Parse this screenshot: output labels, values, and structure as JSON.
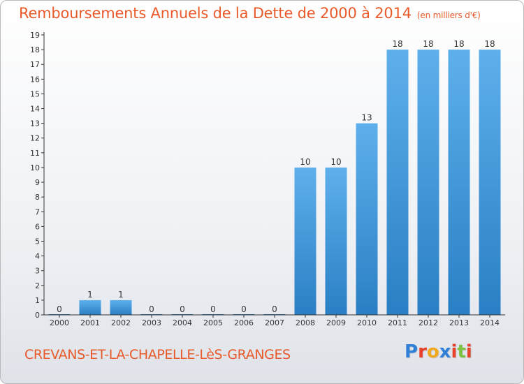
{
  "title": "Remboursements Annuels de la Dette de 2000 à 2014",
  "unit_label": "(en milliers d'€)",
  "commune": "CREVANS-ET-LA-CHAPELLE-LèS-GRANGES",
  "brand": {
    "letters": [
      "P",
      "r",
      "o",
      "x",
      "i",
      "t",
      "i"
    ],
    "colors": [
      "#2f7fd6",
      "#e8402a",
      "#f2a81c",
      "#2f7fd6",
      "#e8402a",
      "#7cc142",
      "#e8402a"
    ]
  },
  "colors": {
    "bar_light": "#5eb0ec",
    "bar_dark": "#2a7fc4",
    "title": "#e85a2a"
  },
  "chart_data": {
    "type": "bar",
    "title": "Remboursements Annuels de la Dette de 2000 à 2014",
    "xlabel": "",
    "ylabel": "(en milliers d'€)",
    "categories": [
      "2000",
      "2001",
      "2002",
      "2003",
      "2004",
      "2005",
      "2006",
      "2007",
      "2008",
      "2009",
      "2010",
      "2011",
      "2012",
      "2013",
      "2014"
    ],
    "values": [
      0,
      1,
      1,
      0,
      0,
      0,
      0,
      0,
      10,
      10,
      13,
      18,
      18,
      18,
      18
    ],
    "ylim": [
      0,
      19
    ],
    "yticks": [
      0,
      1,
      2,
      3,
      4,
      5,
      6,
      7,
      8,
      9,
      10,
      11,
      12,
      13,
      14,
      15,
      16,
      17,
      18,
      19
    ],
    "grid": false,
    "data_labels": true
  }
}
